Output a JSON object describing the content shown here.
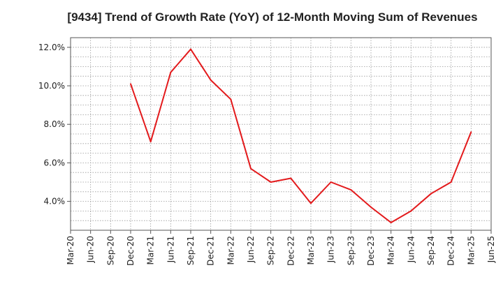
{
  "chart_data": {
    "type": "line",
    "title": "[9434]  Trend of Growth Rate (YoY) of 12-Month Moving Sum of Revenues",
    "xlabel": "",
    "ylabel": "",
    "x_ticks": [
      "Mar-20",
      "Jun-20",
      "Sep-20",
      "Dec-20",
      "Mar-21",
      "Jun-21",
      "Sep-21",
      "Dec-21",
      "Mar-22",
      "Jun-22",
      "Sep-22",
      "Dec-22",
      "Mar-23",
      "Jun-23",
      "Sep-23",
      "Dec-23",
      "Mar-24",
      "Jun-24",
      "Sep-24",
      "Dec-24",
      "Mar-25",
      "Jun-25"
    ],
    "y_ticks": [
      {
        "value": 4.0,
        "label": "4.0%"
      },
      {
        "value": 6.0,
        "label": "6.0%"
      },
      {
        "value": 8.0,
        "label": "8.0%"
      },
      {
        "value": 10.0,
        "label": "10.0%"
      },
      {
        "value": 12.0,
        "label": "12.0%"
      }
    ],
    "ylim": [
      2.5,
      12.5
    ],
    "grid": true,
    "line_color": "#e31a1c",
    "series": [
      {
        "name": "",
        "x": [
          "Dec-20",
          "Mar-21",
          "Jun-21",
          "Sep-21",
          "Dec-21",
          "Mar-22",
          "Jun-22",
          "Sep-22",
          "Dec-22",
          "Mar-23",
          "Jun-23",
          "Sep-23",
          "Dec-23",
          "Mar-24",
          "Jun-24",
          "Sep-24",
          "Dec-24",
          "Mar-25"
        ],
        "values": [
          10.1,
          7.1,
          10.7,
          11.9,
          10.3,
          9.3,
          5.7,
          5.0,
          5.2,
          3.9,
          5.0,
          4.6,
          3.7,
          2.9,
          3.5,
          4.4,
          5.0,
          7.6
        ]
      }
    ]
  }
}
